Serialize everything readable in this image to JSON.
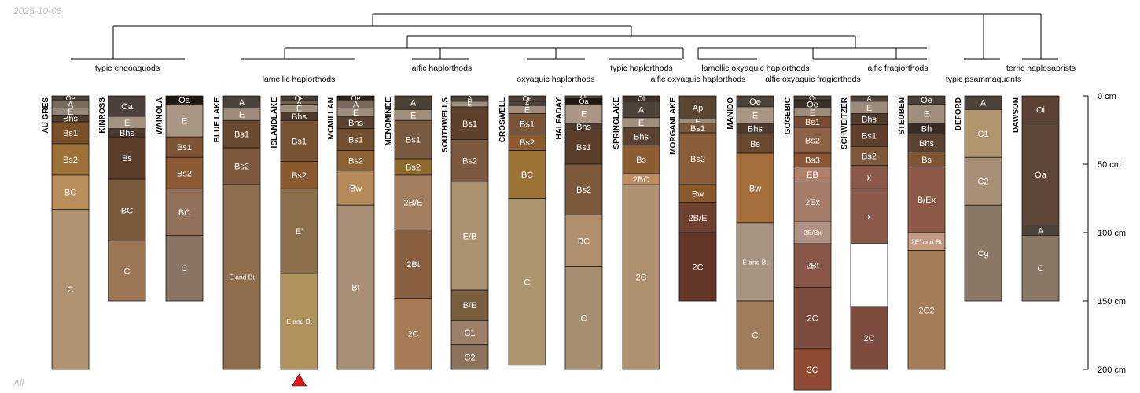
{
  "stamp_top": "2025-10-08",
  "stamp_bottom": "All",
  "depth_axis": {
    "unit": "cm",
    "max_depth": 200,
    "ticks": [
      "0 cm",
      "50 cm",
      "100 cm",
      "150 cm",
      "200 cm"
    ]
  },
  "taxa_labels": [
    "typic endoaquods",
    "lamellic haplorthods",
    "alfic haplorthods",
    "oxyaquic haplorthods",
    "typic haplorthods",
    "alfic oxyaquic haplorthods",
    "lamellic oxyaquic haplorthods",
    "alfic oxyaquic fragiorthods",
    "alfic fragiorthods",
    "typic psammaquents",
    "terric haplosaprists"
  ],
  "marker": {
    "profile": "ISLANDLAKE",
    "color": "#e8141a"
  },
  "colors": {
    "Oe": "#4e443c",
    "Oa": "#4e443c",
    "Oi": "#503f33",
    "A": "#4e443c",
    "E": "#a08e7d",
    "Bhs": "#5c4331",
    "Bs1": "#74502f",
    "Bs2": "#8c6234",
    "BC": "#b8925e",
    "C": "#ae946f",
    "EandBt": "#8c6e4b",
    "Bt": "#ad9070",
    "C2": "#8c7a68",
    "Cg": "#8a7866",
    "Lami": "#b0905e",
    "X": "#8b5a4a",
    "Red": "#6b3b2d",
    "Red2": "#7d4f3f",
    "Gray": "#8a7460",
    "Empty": "#ffffff"
  },
  "profiles": [
    {
      "name": "AU GRES",
      "horizons": [
        {
          "name": "Oe",
          "top": 0,
          "bottom": 3,
          "color": "#4f473f"
        },
        {
          "name": "A",
          "top": 3,
          "bottom": 9,
          "color": "#7a6b5d"
        },
        {
          "name": "E",
          "top": 9,
          "bottom": 14,
          "color": "#9a8a7c"
        },
        {
          "name": "Bhs",
          "top": 14,
          "bottom": 19,
          "color": "#4e3b2c"
        },
        {
          "name": "Bs1",
          "top": 19,
          "bottom": 35,
          "color": "#7a5028"
        },
        {
          "name": "Bs2",
          "top": 35,
          "bottom": 58,
          "color": "#9c7238"
        },
        {
          "name": "BC",
          "top": 58,
          "bottom": 83,
          "color": "#b98e5b"
        },
        {
          "name": "C",
          "top": 83,
          "bottom": 200,
          "color": "#b09370"
        }
      ]
    },
    {
      "name": "KINROSS",
      "horizons": [
        {
          "name": "Oa",
          "top": 0,
          "bottom": 15,
          "color": "#4c413a"
        },
        {
          "name": "E",
          "top": 15,
          "bottom": 24,
          "color": "#a39280"
        },
        {
          "name": "Bhs",
          "top": 24,
          "bottom": 30,
          "color": "#4a3a2e"
        },
        {
          "name": "Bs",
          "top": 30,
          "bottom": 61,
          "color": "#5c3f2b"
        },
        {
          "name": "BC",
          "top": 61,
          "bottom": 106,
          "color": "#7c5a3e"
        },
        {
          "name": "C",
          "top": 106,
          "bottom": 150,
          "color": "#9d7656"
        }
      ]
    },
    {
      "name": "WAINOLA",
      "horizons": [
        {
          "name": "Oa",
          "top": 0,
          "bottom": 6,
          "color": "#1e1814"
        },
        {
          "name": "E",
          "top": 6,
          "bottom": 30,
          "color": "#a99685"
        },
        {
          "name": "Bs1",
          "top": 30,
          "bottom": 45,
          "color": "#7e5435"
        },
        {
          "name": "Bs2",
          "top": 45,
          "bottom": 68,
          "color": "#8b5a34"
        },
        {
          "name": "BC",
          "top": 68,
          "bottom": 102,
          "color": "#93705a"
        },
        {
          "name": "C",
          "top": 102,
          "bottom": 150,
          "color": "#8a7565"
        }
      ]
    },
    {
      "name": "BLUE LAKE",
      "horizons": [
        {
          "name": "A",
          "top": 0,
          "bottom": 9,
          "color": "#4e433a"
        },
        {
          "name": "E",
          "top": 9,
          "bottom": 18,
          "color": "#9e8b79"
        },
        {
          "name": "Bs1",
          "top": 18,
          "bottom": 38,
          "color": "#6a4a30"
        },
        {
          "name": "Bs2",
          "top": 38,
          "bottom": 65,
          "color": "#7e593d"
        },
        {
          "name": "E and Bt",
          "top": 65,
          "bottom": 200,
          "color": "#8e6e4c"
        }
      ]
    },
    {
      "name": "ISLANDLAKE",
      "horizons": [
        {
          "name": "Oe",
          "top": 0,
          "bottom": 3,
          "color": "#4a3f36"
        },
        {
          "name": "A",
          "top": 3,
          "bottom": 6,
          "color": "#6f6050"
        },
        {
          "name": "E",
          "top": 6,
          "bottom": 12,
          "color": "#a08e7c"
        },
        {
          "name": "Bhs",
          "top": 12,
          "bottom": 18,
          "color": "#4e3a2b"
        },
        {
          "name": "Bs1",
          "top": 18,
          "bottom": 48,
          "color": "#7a5333"
        },
        {
          "name": "Bs2",
          "top": 48,
          "bottom": 68,
          "color": "#8a5a2e"
        },
        {
          "name": "E'",
          "top": 68,
          "bottom": 130,
          "color": "#8c6e4a"
        },
        {
          "name": "E and Bt",
          "top": 130,
          "bottom": 200,
          "color": "#b0925e"
        }
      ]
    },
    {
      "name": "MCMILLAN",
      "horizons": [
        {
          "name": "Oe",
          "top": 0,
          "bottom": 3,
          "color": "#2f2520"
        },
        {
          "name": "A",
          "top": 3,
          "bottom": 9,
          "color": "#7a6a5c"
        },
        {
          "name": "E",
          "top": 9,
          "bottom": 15,
          "color": "#a08d7b"
        },
        {
          "name": "Bhs",
          "top": 15,
          "bottom": 24,
          "color": "#5a4030"
        },
        {
          "name": "Bs1",
          "top": 24,
          "bottom": 40,
          "color": "#73502f"
        },
        {
          "name": "Bs2",
          "top": 40,
          "bottom": 55,
          "color": "#8c6234"
        },
        {
          "name": "Bw",
          "top": 55,
          "bottom": 80,
          "color": "#b58a5b"
        },
        {
          "name": "Bt",
          "top": 80,
          "bottom": 200,
          "color": "#a88f75"
        }
      ]
    },
    {
      "name": "MENOMINEE",
      "horizons": [
        {
          "name": "A",
          "top": 0,
          "bottom": 10,
          "color": "#4d4136"
        },
        {
          "name": "E",
          "top": 10,
          "bottom": 18,
          "color": "#a08d7a"
        },
        {
          "name": "Bs1",
          "top": 18,
          "bottom": 46,
          "color": "#7a5a3e"
        },
        {
          "name": "Bs2",
          "top": 46,
          "bottom": 58,
          "color": "#8f6a2f"
        },
        {
          "name": "2B/E",
          "top": 58,
          "bottom": 98,
          "color": "#a27e5f"
        },
        {
          "name": "2Bt",
          "top": 98,
          "bottom": 148,
          "color": "#8a5f40"
        },
        {
          "name": "2C",
          "top": 148,
          "bottom": 200,
          "color": "#a57a55"
        }
      ]
    },
    {
      "name": "SOUTHWELLS",
      "horizons": [
        {
          "name": "A",
          "top": 0,
          "bottom": 4,
          "color": "#4d4036"
        },
        {
          "name": "E",
          "top": 4,
          "bottom": 8,
          "color": "#9e8c7a"
        },
        {
          "name": "Bs1",
          "top": 8,
          "bottom": 32,
          "color": "#5e412c"
        },
        {
          "name": "Bs2",
          "top": 32,
          "bottom": 63,
          "color": "#7d5a3f"
        },
        {
          "name": "E/B",
          "top": 63,
          "bottom": 142,
          "color": "#aa916f"
        },
        {
          "name": "B/E",
          "top": 142,
          "bottom": 164,
          "color": "#7a5e40"
        },
        {
          "name": "C1",
          "top": 164,
          "bottom": 182,
          "color": "#9c8068"
        },
        {
          "name": "C2",
          "top": 182,
          "bottom": 200,
          "color": "#8c735d"
        }
      ]
    },
    {
      "name": "CROSWELL",
      "horizons": [
        {
          "name": "Oe",
          "top": 0,
          "bottom": 4,
          "color": "#4a4038"
        },
        {
          "name": "A",
          "top": 4,
          "bottom": 7,
          "color": "#4d4138"
        },
        {
          "name": "E",
          "top": 7,
          "bottom": 13,
          "color": "#a08d7b"
        },
        {
          "name": "Bs1",
          "top": 13,
          "bottom": 28,
          "color": "#7c5538"
        },
        {
          "name": "Bs2",
          "top": 28,
          "bottom": 40,
          "color": "#8a5c30"
        },
        {
          "name": "BC",
          "top": 40,
          "bottom": 75,
          "color": "#9c7436"
        },
        {
          "name": "C",
          "top": 75,
          "bottom": 197,
          "color": "#ac946f"
        }
      ]
    },
    {
      "name": "HALFADAY",
      "horizons": [
        {
          "name": "Oi",
          "top": 0,
          "bottom": 2,
          "color": "#4f473f"
        },
        {
          "name": "Oa",
          "top": 2,
          "bottom": 6,
          "color": "#1e1814"
        },
        {
          "name": "E",
          "top": 6,
          "bottom": 20,
          "color": "#a99685"
        },
        {
          "name": "Bhs",
          "top": 20,
          "bottom": 25,
          "color": "#4e3a2b"
        },
        {
          "name": "Bs1",
          "top": 25,
          "bottom": 50,
          "color": "#5a3d2a"
        },
        {
          "name": "Bs2",
          "top": 50,
          "bottom": 87,
          "color": "#7d5a3c"
        },
        {
          "name": "BC",
          "top": 87,
          "bottom": 125,
          "color": "#b08f6d"
        },
        {
          "name": "C",
          "top": 125,
          "bottom": 200,
          "color": "#a88e70"
        }
      ]
    },
    {
      "name": "SPRINGLAKE",
      "horizons": [
        {
          "name": "Oi",
          "top": 0,
          "bottom": 4,
          "color": "#3e3229"
        },
        {
          "name": "A",
          "top": 4,
          "bottom": 16,
          "color": "#4f4237"
        },
        {
          "name": "E",
          "top": 16,
          "bottom": 23,
          "color": "#a08d7a"
        },
        {
          "name": "Bhs",
          "top": 23,
          "bottom": 36,
          "color": "#5a4131"
        },
        {
          "name": "Bs",
          "top": 36,
          "bottom": 57,
          "color": "#8a5c30"
        },
        {
          "name": "2BC",
          "top": 57,
          "bottom": 65,
          "color": "#c08a5e"
        },
        {
          "name": "2C",
          "top": 65,
          "bottom": 200,
          "color": "#ad9070"
        }
      ]
    },
    {
      "name": "MORGANLAKE",
      "horizons": [
        {
          "name": "Ap",
          "top": 0,
          "bottom": 17,
          "color": "#5b4634"
        },
        {
          "name": "E",
          "top": 17,
          "bottom": 20,
          "color": "#a08d7a"
        },
        {
          "name": "Bs1",
          "top": 20,
          "bottom": 27,
          "color": "#7a5a3e"
        },
        {
          "name": "Bs2",
          "top": 27,
          "bottom": 65,
          "color": "#8a5d3b"
        },
        {
          "name": "Bw",
          "top": 65,
          "bottom": 78,
          "color": "#8a5a2a"
        },
        {
          "name": "2B/E",
          "top": 78,
          "bottom": 100,
          "color": "#6f4130"
        },
        {
          "name": "2C",
          "top": 100,
          "bottom": 150,
          "color": "#643627"
        }
      ]
    },
    {
      "name": "MANIDO",
      "horizons": [
        {
          "name": "Oe",
          "top": 0,
          "bottom": 8,
          "color": "#4f443b"
        },
        {
          "name": "E",
          "top": 8,
          "bottom": 20,
          "color": "#a99685"
        },
        {
          "name": "Bhs",
          "top": 20,
          "bottom": 28,
          "color": "#4e3a2b"
        },
        {
          "name": "Bs",
          "top": 28,
          "bottom": 42,
          "color": "#6a4a30"
        },
        {
          "name": "Bw",
          "top": 42,
          "bottom": 93,
          "color": "#a5703c"
        },
        {
          "name": "E and Bt",
          "top": 93,
          "bottom": 150,
          "color": "#a89482"
        },
        {
          "name": "C",
          "top": 150,
          "bottom": 200,
          "color": "#9f7c5a"
        }
      ]
    },
    {
      "name": "GOGEBIC",
      "horizons": [
        {
          "name": "Oi",
          "top": 0,
          "bottom": 3,
          "color": "#4c423a"
        },
        {
          "name": "Oe",
          "top": 3,
          "bottom": 9,
          "color": "#3a3028"
        },
        {
          "name": "E",
          "top": 9,
          "bottom": 15,
          "color": "#9e8c7b"
        },
        {
          "name": "Bs1",
          "top": 15,
          "bottom": 23,
          "color": "#7a4a30"
        },
        {
          "name": "Bs2",
          "top": 23,
          "bottom": 42,
          "color": "#8e6246"
        },
        {
          "name": "Bs3",
          "top": 42,
          "bottom": 52,
          "color": "#8b5636"
        },
        {
          "name": "EB",
          "top": 52,
          "bottom": 63,
          "color": "#b0806a"
        },
        {
          "name": "2Ex",
          "top": 63,
          "bottom": 92,
          "color": "#a67c69"
        },
        {
          "name": "2E/Bx",
          "top": 92,
          "bottom": 108,
          "color": "#b09284"
        },
        {
          "name": "2Bt",
          "top": 108,
          "bottom": 140,
          "color": "#8a5648"
        },
        {
          "name": "2C",
          "top": 140,
          "bottom": 185,
          "color": "#7e4c3e"
        },
        {
          "name": "3C",
          "top": 185,
          "bottom": 215,
          "color": "#8e4a33"
        }
      ]
    },
    {
      "name": "SCHWEITZER",
      "horizons": [
        {
          "name": "A",
          "top": 0,
          "bottom": 4,
          "color": "#4d4138"
        },
        {
          "name": "E",
          "top": 4,
          "bottom": 13,
          "color": "#9c8b7a"
        },
        {
          "name": "Bhs",
          "top": 13,
          "bottom": 21,
          "color": "#4e3a2b"
        },
        {
          "name": "Bs1",
          "top": 21,
          "bottom": 37,
          "color": "#5e3f2c"
        },
        {
          "name": "Bs2",
          "top": 37,
          "bottom": 51,
          "color": "#7e593d"
        },
        {
          "name": "x",
          "top": 51,
          "bottom": 68,
          "color": "#8b5a4c"
        },
        {
          "name": "x",
          "top": 68,
          "bottom": 108,
          "color": "#8c5a4b"
        },
        {
          "name": "",
          "top": 108,
          "bottom": 154,
          "color": "#ffffff"
        },
        {
          "name": "2C",
          "top": 154,
          "bottom": 200,
          "color": "#7d4c3e"
        }
      ]
    },
    {
      "name": "STEUBEN",
      "horizons": [
        {
          "name": "Oe",
          "top": 0,
          "bottom": 6,
          "color": "#4a3f37"
        },
        {
          "name": "E",
          "top": 6,
          "bottom": 20,
          "color": "#a08e7c"
        },
        {
          "name": "Bh",
          "top": 20,
          "bottom": 28,
          "color": "#3a2c22"
        },
        {
          "name": "Bhs",
          "top": 28,
          "bottom": 41,
          "color": "#5c4230"
        },
        {
          "name": "Bs",
          "top": 41,
          "bottom": 52,
          "color": "#7e5535"
        },
        {
          "name": "B/Ex",
          "top": 52,
          "bottom": 100,
          "color": "#8c5a46"
        },
        {
          "name": "2E' and Bt",
          "top": 100,
          "bottom": 113,
          "color": "#c49a7e"
        },
        {
          "name": "2C2",
          "top": 113,
          "bottom": 200,
          "color": "#a57c58"
        }
      ]
    },
    {
      "name": "DEFORD",
      "horizons": [
        {
          "name": "A",
          "top": 0,
          "bottom": 10,
          "color": "#4e433a"
        },
        {
          "name": "C1",
          "top": 10,
          "bottom": 45,
          "color": "#b0956f"
        },
        {
          "name": "C2",
          "top": 45,
          "bottom": 80,
          "color": "#a89078"
        },
        {
          "name": "Cg",
          "top": 80,
          "bottom": 150,
          "color": "#8a7866"
        }
      ]
    },
    {
      "name": "DAWSON",
      "horizons": [
        {
          "name": "Oi",
          "top": 0,
          "bottom": 20,
          "color": "#5c4235"
        },
        {
          "name": "Oa",
          "top": 20,
          "bottom": 95,
          "color": "#5e4738"
        },
        {
          "name": "A",
          "top": 95,
          "bottom": 102,
          "color": "#4e433a"
        },
        {
          "name": "C",
          "top": 102,
          "bottom": 150,
          "color": "#8a7866"
        }
      ]
    }
  ]
}
